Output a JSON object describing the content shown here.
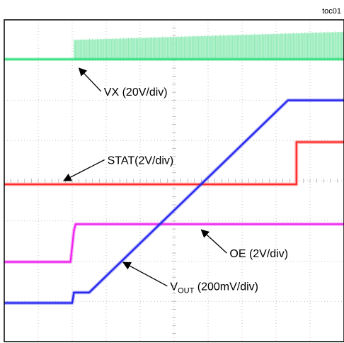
{
  "figure_tag": "toc01",
  "chart_data": {
    "type": "line",
    "title": "",
    "xlabel": "",
    "ylabel": "",
    "x_divisions": 10,
    "y_divisions": 8,
    "grid": true,
    "xlim": [
      0,
      10
    ],
    "ylim": [
      0,
      8
    ],
    "series": [
      {
        "name": "VX (20V/div)",
        "color": "#2ee07a",
        "x": [
          0,
          2,
          2.05,
          10
        ],
        "y": [
          7.02,
          7.02,
          7.02,
          7.02
        ],
        "ripple": {
          "x_start": 2.05,
          "x_end": 10,
          "top_start": 7.5,
          "top_end": 7.7
        }
      },
      {
        "name": "STAT(2V/div)",
        "color": "#ff2a2a",
        "x": [
          0,
          8.6,
          8.6,
          10
        ],
        "y": [
          3.91,
          3.91,
          4.96,
          4.96
        ]
      },
      {
        "name": "OE (2V/div)",
        "color": "#ee22ee",
        "x": [
          0,
          1.95,
          2.05,
          2.1,
          10
        ],
        "y": [
          1.98,
          1.98,
          2.75,
          2.92,
          2.92
        ]
      },
      {
        "name": "VOUT (200mV/div)",
        "color": "#2222ee",
        "x": [
          0,
          2.0,
          2.05,
          2.2,
          2.5,
          8.35,
          10
        ],
        "y": [
          0.96,
          0.96,
          1.22,
          1.22,
          1.22,
          6.0,
          6.0
        ]
      }
    ],
    "annotations": [
      {
        "text_main": "VX (20V/div)",
        "arrow_from": [
          2.85,
          6.22
        ],
        "arrow_to": [
          2.2,
          6.8
        ]
      },
      {
        "text_main": "STAT(2V/div)",
        "arrow_from": [
          2.95,
          4.52
        ],
        "arrow_to": [
          1.75,
          4.0
        ]
      },
      {
        "text_main": "OE (2V/div)",
        "arrow_from": [
          6.55,
          2.2
        ],
        "arrow_to": [
          5.8,
          2.78
        ]
      },
      {
        "text_main": "V",
        "text_sub": "OUT",
        "text_rest": " (200mV/div)",
        "arrow_from": [
          4.8,
          1.38
        ],
        "arrow_to": [
          3.5,
          1.97
        ]
      }
    ]
  }
}
